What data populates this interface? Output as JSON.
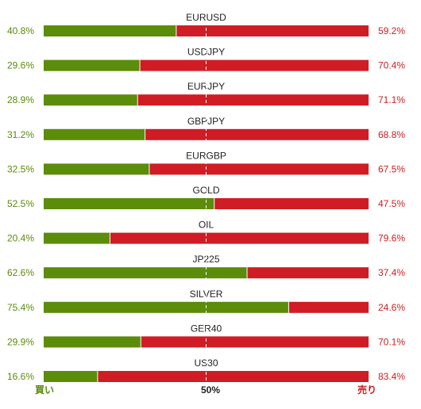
{
  "chart_data": {
    "type": "bar",
    "stacked": true,
    "orientation": "horizontal",
    "categories": [
      "EURUSD",
      "USDJPY",
      "EURJPY",
      "GBPJPY",
      "EURGBP",
      "GOLD",
      "OIL",
      "JP225",
      "SILVER",
      "GER40",
      "US30"
    ],
    "series": [
      {
        "name": "買い",
        "color": "#5b8c0a",
        "values": [
          40.8,
          29.6,
          28.9,
          31.2,
          32.5,
          52.5,
          20.4,
          62.6,
          75.4,
          29.9,
          16.6
        ],
        "labels": [
          "40.8%",
          "29.6%",
          "28.9%",
          "31.2%",
          "32.5%",
          "52.5%",
          "20.4%",
          "62.6%",
          "75.4%",
          "29.9%",
          "16.6%"
        ]
      },
      {
        "name": "売り",
        "color": "#d01c24",
        "values": [
          59.2,
          70.4,
          71.1,
          68.8,
          67.5,
          47.5,
          79.6,
          37.4,
          24.6,
          70.1,
          83.4
        ],
        "labels": [
          "59.2%",
          "70.4%",
          "71.1%",
          "68.8%",
          "67.5%",
          "47.5%",
          "79.6%",
          "37.4%",
          "24.6%",
          "70.1%",
          "83.4%"
        ]
      }
    ],
    "xlim": [
      0,
      100
    ],
    "midline": 50,
    "footer": {
      "left": "買い",
      "center": "50%",
      "right": "売り"
    }
  }
}
